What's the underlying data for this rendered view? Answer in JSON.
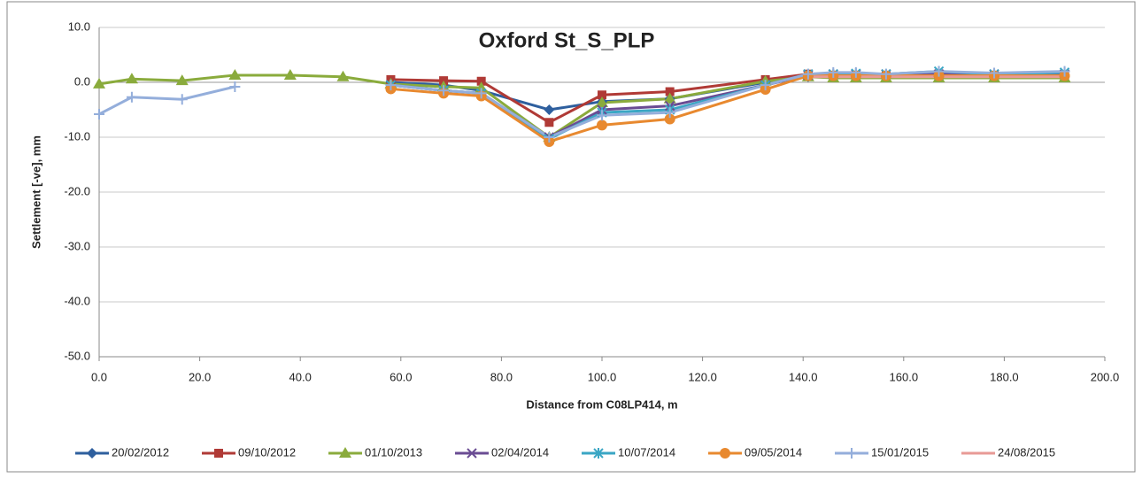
{
  "chart_data": {
    "type": "line",
    "title": "Oxford St_S_PLP",
    "x_label": "Distance from C08LP414, m",
    "y_label": "Settlement [-ve], mm",
    "x": [
      0,
      6.5,
      16.5,
      27,
      38,
      48.5,
      58,
      68.5,
      76,
      89.5,
      100,
      113.5,
      132.5,
      141,
      146,
      150.5,
      156.5,
      167,
      178,
      192
    ],
    "series": [
      {
        "name": "20/02/2012",
        "color": "#2e5f9e",
        "marker": "diamond",
        "values": [
          null,
          null,
          null,
          null,
          null,
          null,
          0,
          -0.5,
          -1.5,
          -5,
          -3.5,
          -3,
          0,
          1,
          1,
          1,
          1,
          1,
          1,
          1
        ]
      },
      {
        "name": "09/10/2012",
        "color": "#b03a36",
        "marker": "square",
        "values": [
          null,
          null,
          null,
          null,
          null,
          null,
          0.5,
          0.3,
          0.2,
          -7.3,
          -2.3,
          -1.7,
          0.5,
          1.5,
          1.2,
          1.2,
          1.2,
          1.2,
          1.2,
          1.2
        ]
      },
      {
        "name": "01/10/2013",
        "color": "#8aab3c",
        "marker": "triangle",
        "values": [
          -0.3,
          0.6,
          0.3,
          1.3,
          1.3,
          1,
          -0.3,
          -0.8,
          -1,
          -10,
          -3.7,
          -3,
          0.2,
          1,
          0.8,
          0.8,
          0.8,
          0.8,
          0.8,
          0.8
        ]
      },
      {
        "name": "02/04/2014",
        "color": "#6a4c93",
        "marker": "x",
        "values": [
          null,
          null,
          null,
          null,
          null,
          null,
          -0.5,
          -1.5,
          -2,
          -10,
          -5,
          -4.3,
          -0.5,
          1.3,
          1.5,
          1.5,
          1.5,
          1.5,
          1.5,
          1.5
        ]
      },
      {
        "name": "10/07/2014",
        "color": "#3aa6c4",
        "marker": "star",
        "values": [
          null,
          null,
          null,
          null,
          null,
          null,
          -0.5,
          -1.5,
          -2,
          -10.3,
          -5.5,
          -5,
          -0.5,
          1.5,
          1.5,
          1.6,
          1.5,
          2,
          1.5,
          1.8
        ]
      },
      {
        "name": "09/05/2014",
        "color": "#e8892f",
        "marker": "circle",
        "values": [
          null,
          null,
          null,
          null,
          null,
          null,
          -1.2,
          -2,
          -2.5,
          -10.8,
          -7.8,
          -6.7,
          -1.3,
          1.2,
          1.2,
          1.2,
          1.2,
          1.2,
          1.2,
          1.2
        ]
      },
      {
        "name": "15/01/2015",
        "color": "#94aedb",
        "marker": "plus",
        "values": [
          -5.8,
          -2.7,
          -3.1,
          -0.8,
          null,
          null,
          -0.5,
          -1.5,
          -2,
          -10,
          -6,
          -5.5,
          -0.5,
          1.5,
          1.8,
          1.8,
          1.5,
          2,
          1.7,
          2
        ]
      },
      {
        "name": "24/08/2015",
        "color": "#e89a96",
        "marker": "none",
        "values": [
          null,
          null,
          null,
          null,
          null,
          null,
          null,
          null,
          null,
          null,
          null,
          null,
          null,
          1,
          1,
          1,
          1,
          1,
          1,
          1
        ]
      }
    ],
    "xlim": [
      0,
      200
    ],
    "xticks": [
      {
        "value": 0,
        "label": "0.0"
      },
      {
        "value": 20,
        "label": "20.0"
      },
      {
        "value": 40,
        "label": "40.0"
      },
      {
        "value": 60,
        "label": "60.0"
      },
      {
        "value": 80,
        "label": "80.0"
      },
      {
        "value": 100,
        "label": "100.0"
      },
      {
        "value": 120,
        "label": "120.0"
      },
      {
        "value": 140,
        "label": "140.0"
      },
      {
        "value": 160,
        "label": "160.0"
      },
      {
        "value": 180,
        "label": "180.0"
      },
      {
        "value": 200,
        "label": "200.0"
      }
    ],
    "ylim": [
      -50,
      10
    ],
    "yticks": [
      {
        "value": -50,
        "label": "-50.0"
      },
      {
        "value": -40,
        "label": "-40.0"
      },
      {
        "value": -30,
        "label": "-30.0"
      },
      {
        "value": -20,
        "label": "-20.0"
      },
      {
        "value": -10,
        "label": "-10.0"
      },
      {
        "value": 0,
        "label": "0.0"
      },
      {
        "value": 10,
        "label": "10.0"
      }
    ],
    "grid": true,
    "legend": "bottom"
  }
}
